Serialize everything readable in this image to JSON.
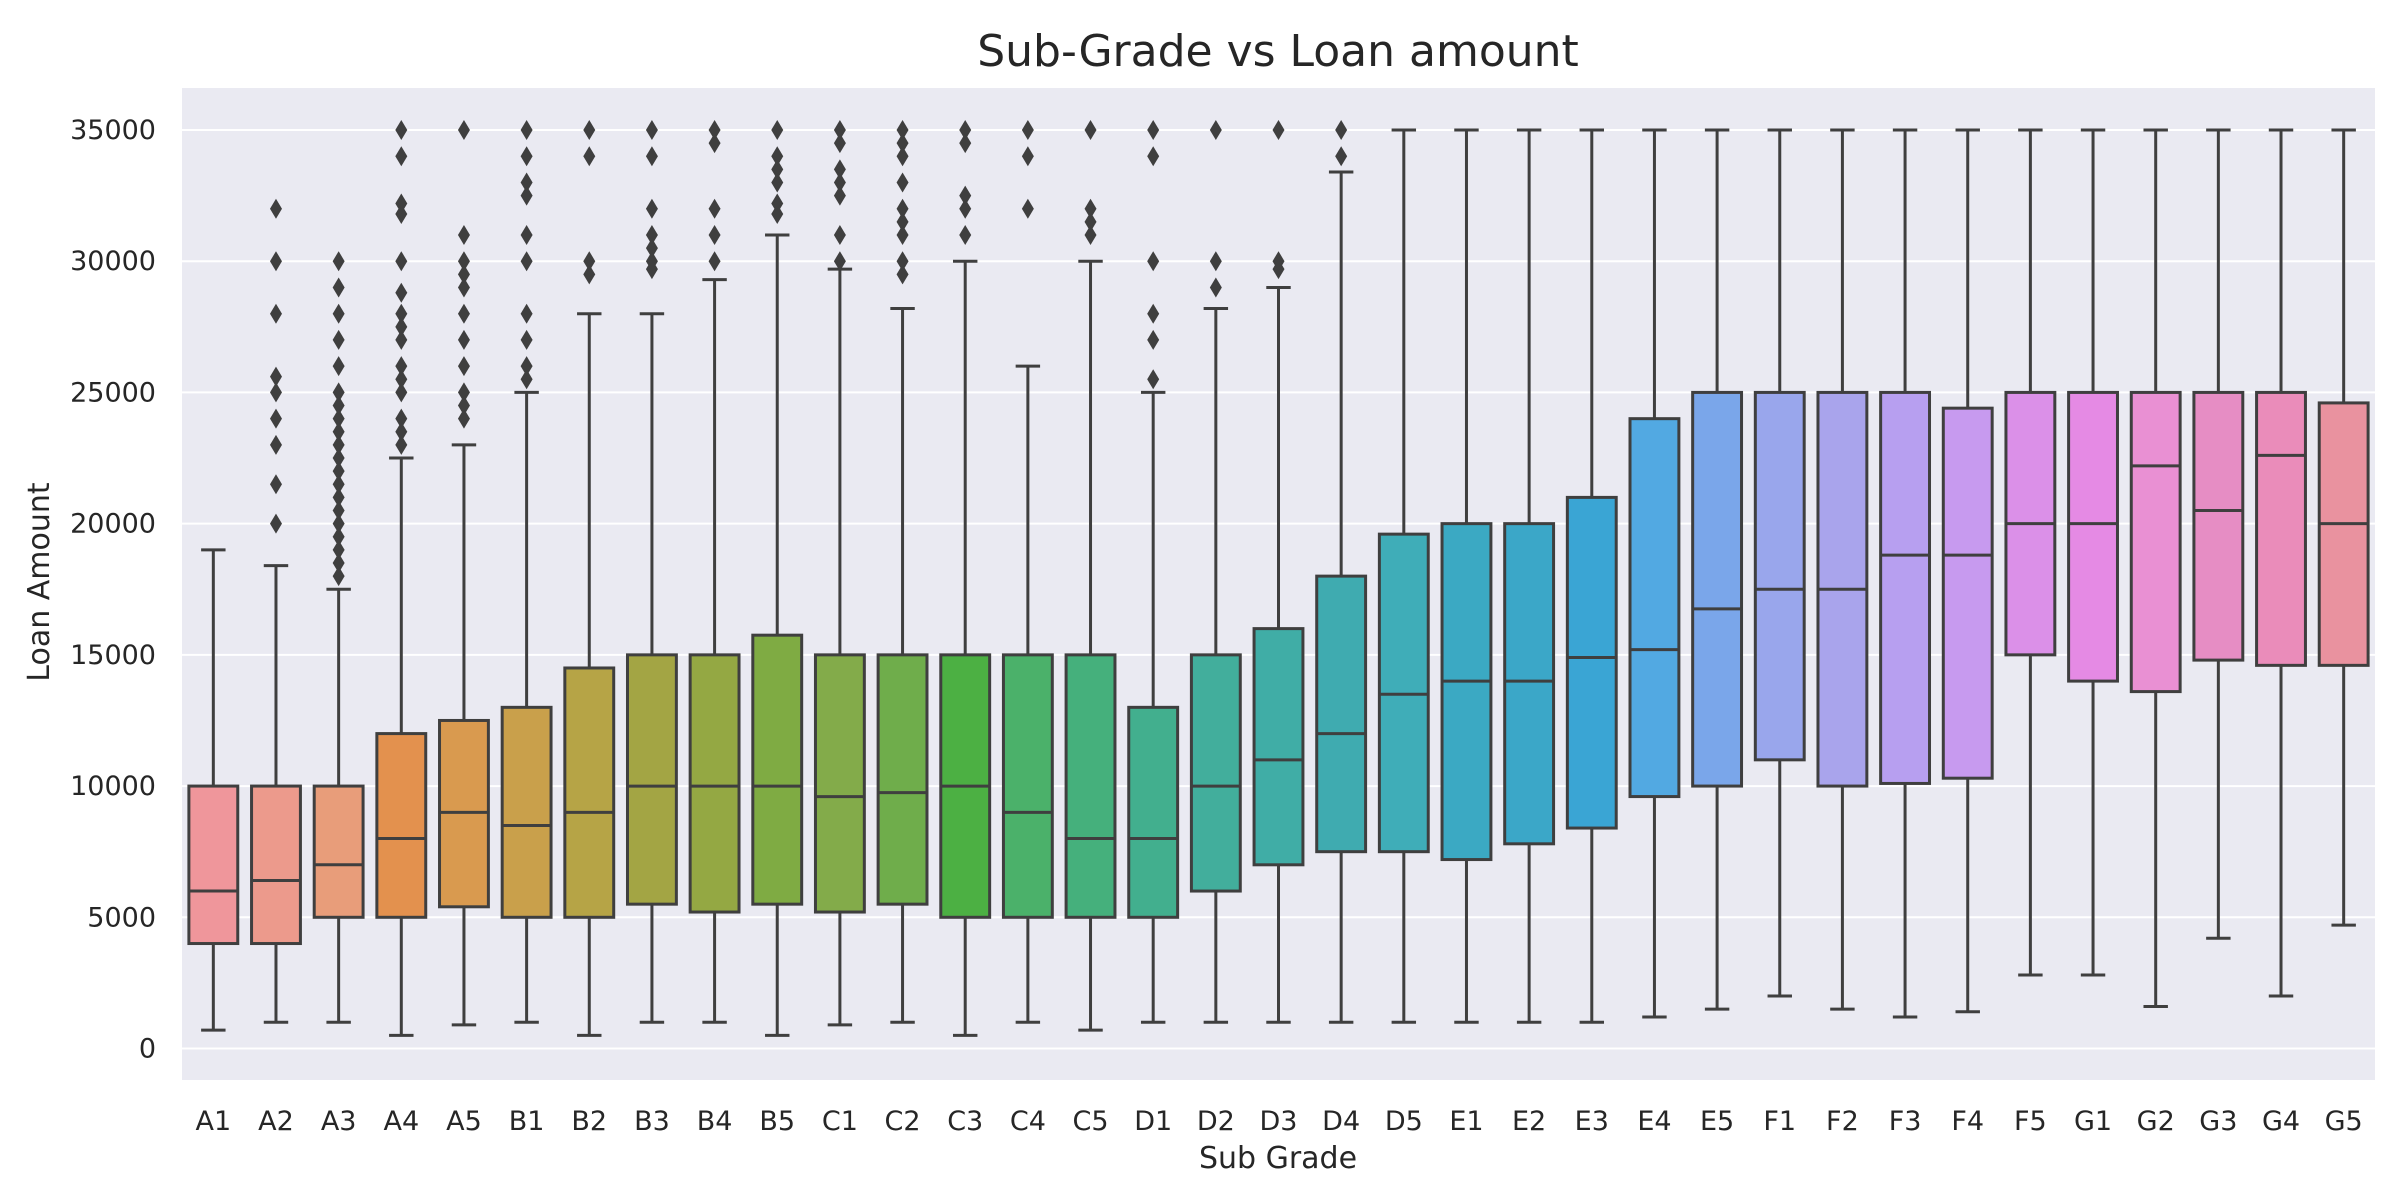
{
  "chart_data": {
    "type": "box",
    "title": "Sub-Grade vs Loan amount",
    "xlabel": "Sub Grade",
    "ylabel": "Loan Amount",
    "ylim": [
      -1200,
      36600
    ],
    "yticks": [
      0,
      5000,
      10000,
      15000,
      20000,
      25000,
      30000,
      35000
    ],
    "grid": true,
    "background": "#eaeaf2",
    "box_edge_color": "#3f3f3f",
    "categories": [
      "A1",
      "A2",
      "A3",
      "A4",
      "A5",
      "B1",
      "B2",
      "B3",
      "B4",
      "B5",
      "C1",
      "C2",
      "C3",
      "C4",
      "C5",
      "D1",
      "D2",
      "D3",
      "D4",
      "D5",
      "E1",
      "E2",
      "E3",
      "E4",
      "E5",
      "F1",
      "F2",
      "F3",
      "F4",
      "F5",
      "G1",
      "G2",
      "G3",
      "G4",
      "G5"
    ],
    "colors": [
      "#ef969b",
      "#ec9a8c",
      "#e89d7a",
      "#e3914e",
      "#d99a4f",
      "#c9a04b",
      "#b6a446",
      "#a3a544",
      "#94a843",
      "#7fab43",
      "#83ab4a",
      "#6fad4b",
      "#4cb043",
      "#4bb16a",
      "#45b07c",
      "#42af8e",
      "#42ae9c",
      "#40ada6",
      "#3fabb0",
      "#3fadb8",
      "#3ba9c3",
      "#3ba7c8",
      "#3aa5d4",
      "#52a9e2",
      "#7aa6ea",
      "#99a6ec",
      "#a9a4ec",
      "#b79ff0",
      "#c79aef",
      "#db90e8",
      "#e58ae4",
      "#e990d3",
      "#e68dc4",
      "#ea8cba",
      "#e9929f"
    ],
    "boxes": [
      {
        "min": 700,
        "q1": 4000,
        "median": 6000,
        "q3": 10000,
        "max": 19000,
        "outliers": []
      },
      {
        "min": 1000,
        "q1": 4000,
        "median": 6400,
        "q3": 10000,
        "max": 18400,
        "outliers": [
          20000,
          21500,
          23000,
          24000,
          25000,
          25600,
          28000,
          30000,
          32000
        ]
      },
      {
        "min": 1000,
        "q1": 5000,
        "median": 7000,
        "q3": 10000,
        "max": 17500,
        "outliers": [
          18000,
          18500,
          19000,
          19500,
          20000,
          20500,
          21000,
          21500,
          22000,
          22500,
          23000,
          23500,
          24000,
          24500,
          25000,
          26000,
          27000,
          28000,
          29000,
          30000
        ]
      },
      {
        "min": 500,
        "q1": 5000,
        "median": 8000,
        "q3": 12000,
        "max": 22500,
        "outliers": [
          23000,
          23500,
          24000,
          25000,
          25500,
          26000,
          27000,
          27500,
          28000,
          28800,
          30000,
          31800,
          32200,
          34000,
          35000
        ]
      },
      {
        "min": 900,
        "q1": 5400,
        "median": 9000,
        "q3": 12500,
        "max": 23000,
        "outliers": [
          24000,
          24500,
          25000,
          26000,
          27000,
          28000,
          29000,
          29500,
          30000,
          31000,
          35000
        ]
      },
      {
        "min": 1000,
        "q1": 5000,
        "median": 8500,
        "q3": 13000,
        "max": 25000,
        "outliers": [
          25500,
          26000,
          27000,
          28000,
          30000,
          31000,
          32500,
          33000,
          34000,
          35000
        ]
      },
      {
        "min": 500,
        "q1": 5000,
        "median": 9000,
        "q3": 14500,
        "max": 28000,
        "outliers": [
          29500,
          30000,
          34000,
          35000
        ]
      },
      {
        "min": 1000,
        "q1": 5500,
        "median": 10000,
        "q3": 15000,
        "max": 28000,
        "outliers": [
          29700,
          30000,
          30500,
          31000,
          32000,
          34000,
          35000
        ]
      },
      {
        "min": 1000,
        "q1": 5200,
        "median": 10000,
        "q3": 15000,
        "max": 29300,
        "outliers": [
          30000,
          31000,
          32000,
          34500,
          35000
        ]
      },
      {
        "min": 500,
        "q1": 5500,
        "median": 10000,
        "q3": 15750,
        "max": 31000,
        "outliers": [
          31800,
          32200,
          33000,
          33500,
          34000,
          35000
        ]
      },
      {
        "min": 900,
        "q1": 5200,
        "median": 9600,
        "q3": 15000,
        "max": 29700,
        "outliers": [
          30000,
          31000,
          32500,
          33000,
          33500,
          34500,
          35000
        ]
      },
      {
        "min": 1000,
        "q1": 5500,
        "median": 9750,
        "q3": 15000,
        "max": 28200,
        "outliers": [
          29500,
          30000,
          31000,
          31500,
          32000,
          33000,
          34000,
          34500,
          35000
        ]
      },
      {
        "min": 500,
        "q1": 5000,
        "median": 10000,
        "q3": 15000,
        "max": 30000,
        "outliers": [
          31000,
          32000,
          32500,
          34500,
          35000
        ]
      },
      {
        "min": 1000,
        "q1": 5000,
        "median": 9000,
        "q3": 15000,
        "max": 26000,
        "outliers": [
          32000,
          34000,
          35000
        ]
      },
      {
        "min": 700,
        "q1": 5000,
        "median": 8000,
        "q3": 15000,
        "max": 30000,
        "outliers": [
          31000,
          31500,
          32000,
          35000
        ]
      },
      {
        "min": 1000,
        "q1": 5000,
        "median": 8000,
        "q3": 13000,
        "max": 25000,
        "outliers": [
          25500,
          27000,
          28000,
          30000,
          34000,
          35000
        ]
      },
      {
        "min": 1000,
        "q1": 6000,
        "median": 10000,
        "q3": 15000,
        "max": 28200,
        "outliers": [
          29000,
          30000,
          35000
        ]
      },
      {
        "min": 1000,
        "q1": 7000,
        "median": 11000,
        "q3": 16000,
        "max": 29000,
        "outliers": [
          29700,
          30000,
          35000
        ]
      },
      {
        "min": 1000,
        "q1": 7500,
        "median": 12000,
        "q3": 18000,
        "max": 33400,
        "outliers": [
          34000,
          35000
        ]
      },
      {
        "min": 1000,
        "q1": 7500,
        "median": 13500,
        "q3": 19600,
        "max": 35000,
        "outliers": []
      },
      {
        "min": 1000,
        "q1": 7200,
        "median": 14000,
        "q3": 20000,
        "max": 35000,
        "outliers": []
      },
      {
        "min": 1000,
        "q1": 7800,
        "median": 14000,
        "q3": 20000,
        "max": 35000,
        "outliers": []
      },
      {
        "min": 1000,
        "q1": 8400,
        "median": 14900,
        "q3": 21000,
        "max": 35000,
        "outliers": []
      },
      {
        "min": 1200,
        "q1": 9600,
        "median": 15200,
        "q3": 24000,
        "max": 35000,
        "outliers": []
      },
      {
        "min": 1500,
        "q1": 10000,
        "median": 16750,
        "q3": 25000,
        "max": 35000,
        "outliers": []
      },
      {
        "min": 2000,
        "q1": 11000,
        "median": 17500,
        "q3": 25000,
        "max": 35000,
        "outliers": []
      },
      {
        "min": 1500,
        "q1": 10000,
        "median": 17500,
        "q3": 25000,
        "max": 35000,
        "outliers": []
      },
      {
        "min": 1200,
        "q1": 10100,
        "median": 18800,
        "q3": 25000,
        "max": 35000,
        "outliers": []
      },
      {
        "min": 1400,
        "q1": 10300,
        "median": 18800,
        "q3": 24400,
        "max": 35000,
        "outliers": []
      },
      {
        "min": 2800,
        "q1": 15000,
        "median": 20000,
        "q3": 25000,
        "max": 35000,
        "outliers": []
      },
      {
        "min": 2800,
        "q1": 14000,
        "median": 20000,
        "q3": 25000,
        "max": 35000,
        "outliers": []
      },
      {
        "min": 1600,
        "q1": 13600,
        "median": 22200,
        "q3": 25000,
        "max": 35000,
        "outliers": []
      },
      {
        "min": 4200,
        "q1": 14800,
        "median": 20500,
        "q3": 25000,
        "max": 35000,
        "outliers": []
      },
      {
        "min": 2000,
        "q1": 14600,
        "median": 22600,
        "q3": 25000,
        "max": 35000,
        "outliers": []
      },
      {
        "min": 4700,
        "q1": 14600,
        "median": 20000,
        "q3": 24600,
        "max": 35000,
        "outliers": []
      }
    ]
  }
}
